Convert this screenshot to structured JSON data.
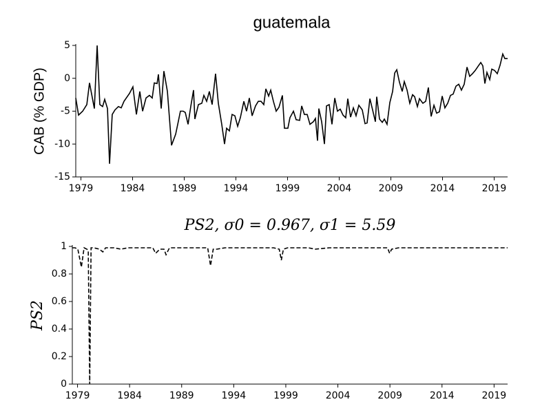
{
  "chart_data": [
    {
      "type": "line",
      "title": "guatemala",
      "y_label": "CAB (% GDP)",
      "xlim": [
        1978.5,
        2020.3
      ],
      "xticks": [
        1979,
        1984,
        1989,
        1994,
        1999,
        2004,
        2009,
        2014,
        2019
      ],
      "ylim": [
        -15,
        5
      ],
      "yticks": [
        -15,
        -10,
        -5,
        0,
        5
      ],
      "line_style": "solid",
      "series": [
        {
          "color": "#000000",
          "x": [
            1978.5,
            1978.77,
            1979.17,
            1979.57,
            1979.83,
            1980.3,
            1980.57,
            1980.83,
            1981.1,
            1981.3,
            1981.57,
            1981.77,
            1982.03,
            1982.3,
            1982.63,
            1982.9,
            1983.17,
            1983.7,
            1984.03,
            1984.37,
            1984.7,
            1984.97,
            1985.3,
            1985.63,
            1985.9,
            1986.1,
            1986.37,
            1986.5,
            1986.77,
            1987.03,
            1987.37,
            1987.77,
            1988.17,
            1988.37,
            1988.63,
            1988.9,
            1989.1,
            1989.37,
            1989.63,
            1989.9,
            1990.03,
            1990.37,
            1990.7,
            1990.9,
            1991.17,
            1991.43,
            1991.7,
            1992.03,
            1992.3,
            1992.63,
            1992.9,
            1993.1,
            1993.37,
            1993.63,
            1993.9,
            1994.17,
            1994.43,
            1994.77,
            1995.03,
            1995.3,
            1995.57,
            1995.9,
            1996.17,
            1996.43,
            1996.7,
            1996.9,
            1997.17,
            1997.37,
            1997.63,
            1997.9,
            1998.17,
            1998.5,
            1998.7,
            1999.03,
            1999.23,
            1999.57,
            1999.83,
            2000.17,
            2000.37,
            2000.63,
            2000.9,
            2001.17,
            2001.5,
            2001.7,
            2001.9,
            2002.03,
            2002.3,
            2002.57,
            2002.77,
            2003.03,
            2003.3,
            2003.57,
            2003.83,
            2004.1,
            2004.37,
            2004.63,
            2004.83,
            2005.1,
            2005.37,
            2005.63,
            2005.9,
            2006.23,
            2006.5,
            2006.7,
            2006.97,
            2007.23,
            2007.5,
            2007.63,
            2007.9,
            2008.17,
            2008.37,
            2008.63,
            2008.9,
            2009.17,
            2009.37,
            2009.57,
            2009.83,
            2010.1,
            2010.3,
            2010.57,
            2010.83,
            2011.1,
            2011.3,
            2011.57,
            2011.77,
            2012.1,
            2012.37,
            2012.63,
            2012.9,
            2013.17,
            2013.43,
            2013.7,
            2013.97,
            2014.23,
            2014.5,
            2014.77,
            2015.03,
            2015.3,
            2015.57,
            2015.83,
            2016.1,
            2016.37,
            2016.63,
            2016.9,
            2017.17,
            2017.43,
            2017.7,
            2017.9,
            2018.1,
            2018.3,
            2018.57,
            2018.77,
            2019.03,
            2019.3,
            2019.57,
            2019.83,
            2020.03,
            2020.3
          ],
          "values": [
            -3,
            -5.6,
            -5,
            -4,
            -0.7,
            -4.6,
            5,
            -4,
            -4.3,
            -3.2,
            -4.6,
            -13,
            -5.5,
            -4.8,
            -4.3,
            -4.5,
            -3.5,
            -2.3,
            -1.3,
            -5.5,
            -2,
            -5,
            -3,
            -2.6,
            -3,
            -0.7,
            -0.8,
            0.6,
            -4.6,
            1.1,
            -2,
            -10.2,
            -8.5,
            -7,
            -5,
            -5,
            -5.2,
            -7,
            -4.3,
            -1.8,
            -6.2,
            -4,
            -3.8,
            -2.6,
            -3.5,
            -2,
            -4,
            0.7,
            -3.8,
            -7,
            -10,
            -7.6,
            -8,
            -5.5,
            -5.7,
            -7.3,
            -6,
            -3.5,
            -5,
            -3,
            -5.7,
            -4.2,
            -3.5,
            -3.5,
            -4,
            -1.6,
            -2.7,
            -1.8,
            -3.5,
            -5,
            -4.4,
            -2.6,
            -7.6,
            -7.6,
            -6,
            -5,
            -6.3,
            -6.4,
            -4.2,
            -5.5,
            -5.5,
            -7,
            -6.6,
            -6.1,
            -9.5,
            -4.6,
            -6.6,
            -10,
            -4.2,
            -4,
            -7,
            -3,
            -5,
            -4.7,
            -5.6,
            -6,
            -3.1,
            -5.9,
            -4.5,
            -5.7,
            -4.1,
            -4.8,
            -6.9,
            -6.8,
            -3.1,
            -4.8,
            -6.6,
            -2.8,
            -6.2,
            -6.7,
            -6.2,
            -7,
            -3.7,
            -2,
            0.8,
            1.3,
            -0.6,
            -2,
            -0.5,
            -1.8,
            -3.8,
            -2.5,
            -2.8,
            -4.3,
            -3.1,
            -3.8,
            -3.5,
            -1.4,
            -5.8,
            -4.1,
            -5.3,
            -5.1,
            -2.7,
            -4.5,
            -3.8,
            -2.6,
            -2.4,
            -1.2,
            -0.9,
            -1.8,
            -0.9,
            1.7,
            0.3,
            0.7,
            1.2,
            1.8,
            2.4,
            1.9,
            -0.8,
            0.9,
            -0.2,
            1.4,
            1.2,
            0.7,
            2,
            3.7,
            3,
            3
          ]
        }
      ]
    },
    {
      "type": "line",
      "title": "PS2, σ0 = 0.967, σ1 = 5.59",
      "y_label": "PS2",
      "xlim": [
        1978.5,
        2020.3
      ],
      "xticks": [
        1979,
        1984,
        1989,
        1994,
        1999,
        2004,
        2009,
        2014,
        2019
      ],
      "ylim": [
        0,
        1
      ],
      "yticks": [
        0,
        0.2,
        0.4,
        0.6,
        0.8,
        1
      ],
      "line_style": "dashed",
      "series": [
        {
          "color": "#000000",
          "x": [
            1978.5,
            1978.77,
            1979.03,
            1979.37,
            1979.63,
            1979.9,
            1980.03,
            1980.17,
            1980.3,
            1980.57,
            1981.1,
            1981.43,
            1981.7,
            1982.5,
            1983.17,
            1983.83,
            1984.5,
            1985.5,
            1986.23,
            1986.5,
            1986.9,
            1987.3,
            1987.5,
            1987.83,
            1989.17,
            1990.5,
            1991.5,
            1991.77,
            1992.03,
            1992.37,
            1993.17,
            1995.17,
            1996.5,
            1997.83,
            1998.37,
            1998.57,
            1998.77,
            1999.17,
            2001.17,
            2001.83,
            2003.17,
            2005.83,
            2007.83,
            2008.77,
            2008.97,
            2009.17,
            2009.83,
            2012.5,
            2016.5,
            2019.17,
            2020.3
          ],
          "values": [
            0.99,
            0.99,
            0.98,
            0.85,
            0.99,
            0.98,
            0.97,
            0,
            0.99,
            0.99,
            0.98,
            0.96,
            0.99,
            0.99,
            0.98,
            0.99,
            0.99,
            0.99,
            0.99,
            0.95,
            0.98,
            0.98,
            0.94,
            0.99,
            0.99,
            0.99,
            0.99,
            0.86,
            0.98,
            0.98,
            0.99,
            0.99,
            0.99,
            0.99,
            0.98,
            0.9,
            0.98,
            0.99,
            0.99,
            0.98,
            0.99,
            0.99,
            0.99,
            0.99,
            0.95,
            0.98,
            0.99,
            0.99,
            0.99,
            0.99,
            0.99
          ]
        }
      ]
    }
  ]
}
